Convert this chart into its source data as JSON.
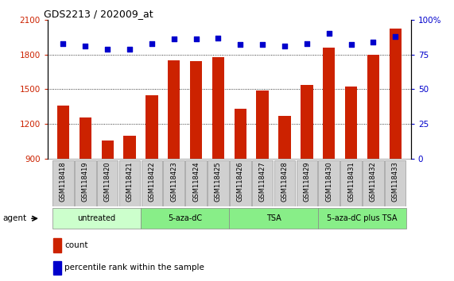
{
  "title": "GDS2213 / 202009_at",
  "samples": [
    "GSM118418",
    "GSM118419",
    "GSM118420",
    "GSM118421",
    "GSM118422",
    "GSM118423",
    "GSM118424",
    "GSM118425",
    "GSM118426",
    "GSM118427",
    "GSM118428",
    "GSM118429",
    "GSM118430",
    "GSM118431",
    "GSM118432",
    "GSM118433"
  ],
  "counts": [
    1360,
    1255,
    1060,
    1100,
    1450,
    1750,
    1740,
    1780,
    1330,
    1490,
    1270,
    1540,
    1860,
    1520,
    1800,
    2020
  ],
  "percentiles": [
    83,
    81,
    79,
    79,
    83,
    86,
    86,
    87,
    82,
    82,
    81,
    83,
    90,
    82,
    84,
    88
  ],
  "bar_color": "#cc2200",
  "dot_color": "#0000cc",
  "ylim_left": [
    900,
    2100
  ],
  "ylim_right": [
    0,
    100
  ],
  "yticks_left": [
    900,
    1200,
    1500,
    1800,
    2100
  ],
  "yticks_right": [
    0,
    25,
    50,
    75,
    100
  ],
  "groups": [
    {
      "label": "untreated",
      "start": 0,
      "end": 4,
      "color": "#ccffcc"
    },
    {
      "label": "5-aza-dC",
      "start": 4,
      "end": 8,
      "color": "#88ee88"
    },
    {
      "label": "TSA",
      "start": 8,
      "end": 12,
      "color": "#88ee88"
    },
    {
      "label": "5-aza-dC plus TSA",
      "start": 12,
      "end": 16,
      "color": "#88ee88"
    }
  ],
  "agent_label": "agent",
  "legend_count_color": "#cc2200",
  "legend_pct_color": "#0000cc",
  "left_tick_color": "#cc2200",
  "right_tick_color": "#0000cc",
  "grid_dotted_ticks": [
    1200,
    1500,
    1800
  ],
  "bar_bottom": 900
}
